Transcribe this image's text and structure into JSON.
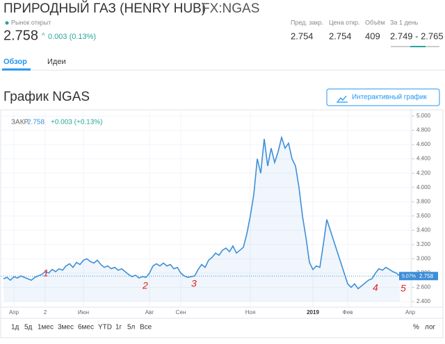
{
  "header": {
    "title": "ПРИРОДНЫЙ ГАЗ (HENRY HUB)",
    "symbol": "FX:NGAS",
    "status": "Рынок открыт",
    "price": "2.758",
    "change": "0.003 (0.13%)",
    "stats": [
      {
        "label": "Пред. закр.",
        "value": "2.754"
      },
      {
        "label": "Цена откр.",
        "value": "2.754"
      },
      {
        "label": "Объём",
        "value": "409"
      },
      {
        "label": "За 1 день",
        "value": "2.749 - 2.765"
      }
    ]
  },
  "tabs": [
    "Обзор",
    "Идеи"
  ],
  "section_title": "График NGAS",
  "button": "Интерактивный график",
  "toolbar": {
    "ranges": [
      "1д",
      "5д",
      "1мес",
      "3мес",
      "6мес",
      "YTD",
      "1г",
      "5л",
      "Все"
    ],
    "options": [
      "%",
      "лог"
    ]
  },
  "chart_data": {
    "type": "line",
    "legend": {
      "label": "ЗАКР",
      "value": "2.758",
      "change": "+0.003 (+0.13%)"
    },
    "price_tag": "5.07%",
    "color": "#3d8ed8",
    "categories": [
      null,
      null,
      null,
      "Апр",
      null,
      null,
      null,
      null,
      null,
      null,
      null,
      null,
      "2",
      null,
      null,
      null,
      null,
      null,
      null,
      null,
      null,
      null,
      null,
      "Июн",
      null,
      null,
      null,
      null,
      null,
      null,
      null,
      null,
      null,
      null,
      null,
      null,
      null,
      null,
      null,
      null,
      null,
      null,
      "Авг",
      null,
      null,
      null,
      null,
      null,
      null,
      null,
      null,
      "Сен",
      null,
      null,
      null,
      null,
      null,
      null,
      null,
      null,
      null,
      null,
      null,
      null,
      null,
      null,
      null,
      null,
      null,
      null,
      null,
      "Ноя",
      null,
      null,
      null,
      null,
      null,
      null,
      null,
      null,
      null,
      null,
      null,
      null,
      null,
      null,
      null,
      null,
      null,
      "2019",
      null,
      null,
      null,
      null,
      null,
      null,
      null,
      null,
      null,
      "Фев",
      null,
      null,
      null,
      null,
      null,
      null,
      null,
      null,
      null,
      null,
      null,
      null,
      null,
      null,
      null,
      null,
      null,
      "Апр"
    ],
    "values": [
      2.72,
      2.74,
      2.7,
      2.75,
      2.73,
      2.76,
      2.74,
      2.72,
      2.7,
      2.74,
      2.76,
      2.78,
      2.82,
      2.8,
      2.85,
      2.82,
      2.86,
      2.84,
      2.9,
      2.93,
      2.88,
      2.95,
      2.92,
      2.98,
      3.0,
      2.96,
      2.94,
      2.98,
      2.92,
      2.88,
      2.9,
      2.86,
      2.88,
      2.84,
      2.86,
      2.82,
      2.78,
      2.75,
      2.77,
      2.73,
      2.75,
      2.74,
      2.8,
      2.9,
      2.93,
      2.9,
      2.94,
      2.9,
      2.92,
      2.86,
      2.88,
      2.8,
      2.76,
      2.74,
      2.75,
      2.76,
      2.85,
      2.92,
      2.88,
      2.98,
      3.02,
      3.08,
      3.05,
      3.12,
      3.15,
      3.1,
      3.18,
      3.08,
      3.12,
      3.16,
      3.35,
      3.6,
      3.9,
      4.4,
      4.2,
      4.68,
      4.3,
      4.55,
      4.35,
      4.5,
      4.7,
      4.55,
      4.62,
      4.4,
      4.3,
      4.0,
      3.6,
      3.3,
      2.95,
      2.85,
      2.9,
      2.88,
      3.2,
      3.55,
      3.4,
      3.25,
      3.1,
      2.95,
      2.8,
      2.65,
      2.6,
      2.65,
      2.58,
      2.62,
      2.66,
      2.7,
      2.72,
      2.8,
      2.86,
      2.84,
      2.88,
      2.85,
      2.82,
      2.8,
      2.758,
      null,
      null,
      null
    ],
    "ylim": [
      2.4,
      5.0
    ],
    "yticks": [
      {
        "value": 2.4,
        "label": "2.400"
      },
      {
        "value": 2.6,
        "label": "2.600"
      },
      {
        "value": 2.8,
        "label": "2.800"
      },
      {
        "value": 3.0,
        "label": "3.000"
      },
      {
        "value": 3.2,
        "label": "3.200"
      },
      {
        "value": 3.4,
        "label": "3.400"
      },
      {
        "value": 3.6,
        "label": "3.600"
      },
      {
        "value": 3.8,
        "label": "3.800"
      },
      {
        "value": 4.0,
        "label": "4.000"
      },
      {
        "value": 4.2,
        "label": "4.200"
      },
      {
        "value": 4.4,
        "label": "4.400"
      },
      {
        "value": 4.6,
        "label": "4.600"
      },
      {
        "value": 4.8,
        "label": "4.800"
      },
      {
        "value": 5.0,
        "label": "5.000"
      }
    ],
    "grid": true,
    "annotations": [
      "1",
      "2",
      "3",
      "4",
      "5"
    ]
  }
}
